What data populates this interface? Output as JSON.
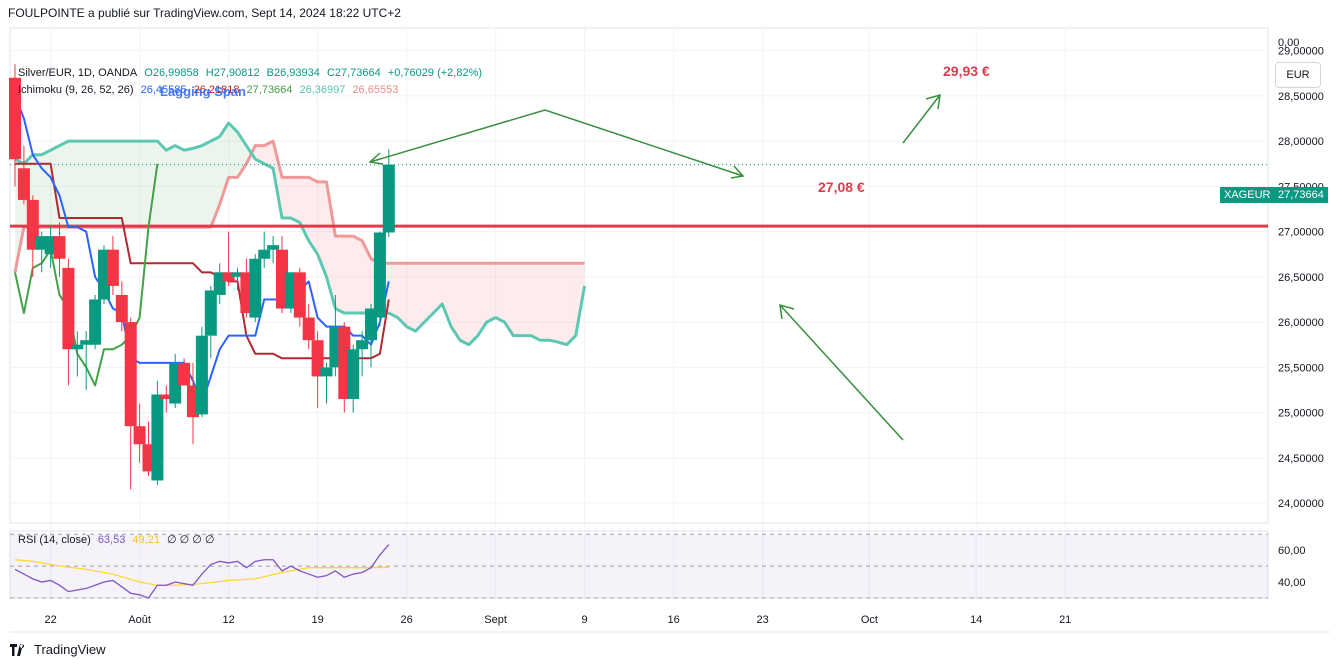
{
  "header": {
    "text": "FOULPOINTE a publié sur TradingView.com, Sept 14, 2024 18:22 UTC+2"
  },
  "legend": {
    "symbol": "Silver/EUR, 1D, OANDA",
    "o": "O26,99858",
    "h": "H27,90812",
    "b": "B26,93934",
    "c": "C27,73664",
    "chg": "+0,76029 (+2,82%)",
    "ichimoku": "Ichimoku (9, 26, 52, 26)",
    "ich_v1": "26,45585",
    "ich_v2": "26,21818",
    "ich_v3": "27,73664",
    "ich_v4": "26,36997",
    "ich_v5": "26,65553",
    "overlay_text": "Lagging Span",
    "rsi": "RSI (14, close)",
    "rsi_v": "63,53",
    "rsi_ma": "49,21",
    "rsi_extra": "∅ ∅ ∅ ∅"
  },
  "currency": "EUR",
  "annotations": {
    "target": "29,93 €",
    "level": "27,08 €"
  },
  "price_tag": {
    "symbol": "XAGEUR",
    "value": "27,73664"
  },
  "footer": {
    "brand": "TradingView"
  },
  "colors": {
    "up": "#089981",
    "down": "#f23645",
    "tenkan": "#2962ff",
    "kijun": "#b22833",
    "lagging": "#43a047",
    "spanA": "#5cc8b4",
    "spanB": "#ef9a9a",
    "hline": "#e03b4a",
    "arrow": "#388e3c",
    "rsi": "#7e57c2",
    "rsi_ma": "#fdd835"
  },
  "chart_data": {
    "type": "candlestick",
    "y_ticks": [
      "0,00",
      "29,00000",
      "28,50000",
      "28,00000",
      "27,50000",
      "27,00000",
      "26,50000",
      "26,00000",
      "25,50000",
      "25,00000",
      "24,50000",
      "24,00000"
    ],
    "y_tick_values": [
      null,
      29.0,
      28.5,
      28.0,
      27.5,
      27.0,
      26.5,
      26.0,
      25.5,
      25.0,
      24.5,
      24.0
    ],
    "ylim": [
      23.78,
      29.25
    ],
    "x_ticks": [
      "22",
      "Août",
      "12",
      "19",
      "26",
      "Sept",
      "9",
      "16",
      "23",
      "Oct",
      "14",
      "21"
    ],
    "x_tick_days": [
      4,
      14,
      24,
      34,
      44,
      54,
      64,
      74,
      84,
      96,
      108,
      118
    ],
    "horizontal_level": 27.06,
    "candles": [
      {
        "d": 0,
        "o": 28.7,
        "h": 28.85,
        "l": 27.5,
        "c": 27.8
      },
      {
        "d": 1,
        "o": 27.7,
        "h": 27.95,
        "l": 27.3,
        "c": 27.35
      },
      {
        "d": 2,
        "o": 27.35,
        "h": 27.4,
        "l": 26.5,
        "c": 26.8
      },
      {
        "d": 3,
        "o": 26.8,
        "h": 27.0,
        "l": 26.55,
        "c": 26.95
      },
      {
        "d": 4,
        "o": 26.75,
        "h": 27.05,
        "l": 26.6,
        "c": 26.95
      },
      {
        "d": 5,
        "o": 26.95,
        "h": 27.1,
        "l": 26.5,
        "c": 26.7
      },
      {
        "d": 6,
        "o": 26.6,
        "h": 26.7,
        "l": 25.3,
        "c": 25.7
      },
      {
        "d": 7,
        "o": 25.7,
        "h": 25.9,
        "l": 25.4,
        "c": 25.75
      },
      {
        "d": 8,
        "o": 25.75,
        "h": 25.9,
        "l": 25.25,
        "c": 25.8
      },
      {
        "d": 9,
        "o": 25.75,
        "h": 26.3,
        "l": 25.7,
        "c": 26.25
      },
      {
        "d": 10,
        "o": 26.25,
        "h": 26.85,
        "l": 26.2,
        "c": 26.8
      },
      {
        "d": 11,
        "o": 26.8,
        "h": 26.95,
        "l": 26.3,
        "c": 26.4
      },
      {
        "d": 12,
        "o": 26.3,
        "h": 26.45,
        "l": 25.9,
        "c": 26.0
      },
      {
        "d": 13,
        "o": 26.0,
        "h": 26.05,
        "l": 24.15,
        "c": 24.85
      },
      {
        "d": 14,
        "o": 24.85,
        "h": 25.1,
        "l": 24.45,
        "c": 24.65
      },
      {
        "d": 15,
        "o": 24.65,
        "h": 24.9,
        "l": 24.3,
        "c": 24.35
      },
      {
        "d": 16,
        "o": 24.25,
        "h": 25.35,
        "l": 24.2,
        "c": 25.2
      },
      {
        "d": 17,
        "o": 25.2,
        "h": 25.3,
        "l": 25.0,
        "c": 25.15
      },
      {
        "d": 18,
        "o": 25.1,
        "h": 25.65,
        "l": 25.05,
        "c": 25.55
      },
      {
        "d": 19,
        "o": 25.55,
        "h": 25.6,
        "l": 25.3,
        "c": 25.3
      },
      {
        "d": 20,
        "o": 25.3,
        "h": 25.55,
        "l": 24.65,
        "c": 24.95
      },
      {
        "d": 21,
        "o": 24.98,
        "h": 25.95,
        "l": 24.95,
        "c": 25.85
      },
      {
        "d": 22,
        "o": 25.85,
        "h": 26.4,
        "l": 25.6,
        "c": 26.35
      },
      {
        "d": 23,
        "o": 26.3,
        "h": 26.65,
        "l": 26.2,
        "c": 26.55
      },
      {
        "d": 24,
        "o": 26.55,
        "h": 27.0,
        "l": 26.4,
        "c": 26.45
      },
      {
        "d": 25,
        "o": 26.5,
        "h": 26.6,
        "l": 26.35,
        "c": 26.55
      },
      {
        "d": 26,
        "o": 26.55,
        "h": 26.7,
        "l": 26.05,
        "c": 26.1
      },
      {
        "d": 27,
        "o": 26.05,
        "h": 26.75,
        "l": 26.0,
        "c": 26.7
      },
      {
        "d": 28,
        "o": 26.7,
        "h": 27.0,
        "l": 26.6,
        "c": 26.8
      },
      {
        "d": 29,
        "o": 26.8,
        "h": 26.95,
        "l": 26.65,
        "c": 26.85
      },
      {
        "d": 30,
        "o": 26.8,
        "h": 26.95,
        "l": 26.1,
        "c": 26.15
      },
      {
        "d": 31,
        "o": 26.15,
        "h": 26.55,
        "l": 26.1,
        "c": 26.55
      },
      {
        "d": 32,
        "o": 26.55,
        "h": 26.6,
        "l": 25.95,
        "c": 26.05
      },
      {
        "d": 33,
        "o": 26.05,
        "h": 26.2,
        "l": 25.7,
        "c": 25.8
      },
      {
        "d": 34,
        "o": 25.8,
        "h": 25.9,
        "l": 25.05,
        "c": 25.4
      },
      {
        "d": 35,
        "o": 25.4,
        "h": 25.55,
        "l": 25.1,
        "c": 25.5
      },
      {
        "d": 36,
        "o": 25.5,
        "h": 26.3,
        "l": 25.4,
        "c": 25.95
      },
      {
        "d": 37,
        "o": 25.95,
        "h": 26.0,
        "l": 25.0,
        "c": 25.15
      },
      {
        "d": 38,
        "o": 25.15,
        "h": 25.75,
        "l": 25.0,
        "c": 25.7
      },
      {
        "d": 39,
        "o": 25.7,
        "h": 25.9,
        "l": 25.4,
        "c": 25.8
      },
      {
        "d": 40,
        "o": 25.8,
        "h": 26.2,
        "l": 25.5,
        "c": 26.15
      },
      {
        "d": 41,
        "o": 26.05,
        "h": 27.0,
        "l": 25.95,
        "c": 26.99
      },
      {
        "d": 42,
        "o": 26.99,
        "h": 27.91,
        "l": 26.94,
        "c": 27.74
      }
    ],
    "tenkan": [
      [
        0,
        28.5
      ],
      [
        1,
        28.25
      ],
      [
        2,
        27.85
      ],
      [
        3,
        27.7
      ],
      [
        4,
        27.6
      ],
      [
        5,
        27.4
      ],
      [
        6,
        27.05
      ],
      [
        7,
        27.05
      ],
      [
        8,
        27.0
      ],
      [
        9,
        26.5
      ],
      [
        10,
        26.35
      ],
      [
        11,
        26.15
      ],
      [
        12,
        26.1
      ],
      [
        13,
        25.6
      ],
      [
        14,
        25.55
      ],
      [
        15,
        25.55
      ],
      [
        16,
        25.55
      ],
      [
        17,
        25.55
      ],
      [
        18,
        25.55
      ],
      [
        19,
        25.55
      ],
      [
        20,
        25.35
      ],
      [
        21,
        25.1
      ],
      [
        22,
        25.4
      ],
      [
        23,
        25.7
      ],
      [
        24,
        25.85
      ],
      [
        25,
        25.85
      ],
      [
        26,
        25.85
      ],
      [
        27,
        25.85
      ],
      [
        28,
        26.25
      ],
      [
        29,
        26.25
      ],
      [
        30,
        26.25
      ],
      [
        31,
        26.25
      ],
      [
        32,
        26.35
      ],
      [
        33,
        26.45
      ],
      [
        34,
        26.05
      ],
      [
        35,
        25.95
      ],
      [
        36,
        25.95
      ],
      [
        37,
        25.95
      ],
      [
        38,
        25.85
      ],
      [
        39,
        25.85
      ],
      [
        40,
        25.75
      ],
      [
        41,
        26.0
      ],
      [
        42,
        26.45
      ]
    ],
    "kijun": [
      [
        0,
        27.75
      ],
      [
        1,
        27.75
      ],
      [
        2,
        27.75
      ],
      [
        3,
        27.75
      ],
      [
        4,
        27.75
      ],
      [
        5,
        27.15
      ],
      [
        6,
        27.15
      ],
      [
        7,
        27.15
      ],
      [
        8,
        27.15
      ],
      [
        9,
        27.15
      ],
      [
        10,
        27.15
      ],
      [
        11,
        27.15
      ],
      [
        12,
        27.15
      ],
      [
        13,
        26.65
      ],
      [
        14,
        26.65
      ],
      [
        15,
        26.65
      ],
      [
        16,
        26.65
      ],
      [
        17,
        26.65
      ],
      [
        18,
        26.65
      ],
      [
        19,
        26.65
      ],
      [
        20,
        26.65
      ],
      [
        21,
        26.55
      ],
      [
        22,
        26.55
      ],
      [
        23,
        26.5
      ],
      [
        24,
        26.45
      ],
      [
        25,
        26.45
      ],
      [
        26,
        25.85
      ],
      [
        27,
        25.65
      ],
      [
        28,
        25.65
      ],
      [
        29,
        25.65
      ],
      [
        30,
        25.6
      ],
      [
        31,
        25.6
      ],
      [
        32,
        25.6
      ],
      [
        33,
        25.6
      ],
      [
        34,
        25.6
      ],
      [
        35,
        25.6
      ],
      [
        36,
        25.6
      ],
      [
        37,
        25.6
      ],
      [
        38,
        25.6
      ],
      [
        39,
        25.6
      ],
      [
        40,
        25.6
      ],
      [
        41,
        25.65
      ],
      [
        42,
        26.25
      ]
    ],
    "lagging": [
      [
        0,
        26.55
      ],
      [
        1,
        26.1
      ],
      [
        2,
        26.6
      ],
      [
        3,
        26.65
      ],
      [
        4,
        26.8
      ],
      [
        5,
        26.3
      ],
      [
        6,
        26.15
      ],
      [
        7,
        25.65
      ],
      [
        8,
        25.5
      ],
      [
        9,
        25.3
      ],
      [
        10,
        25.7
      ],
      [
        11,
        25.7
      ],
      [
        12,
        25.75
      ],
      [
        13,
        25.85
      ],
      [
        14,
        26.05
      ],
      [
        15,
        27.05
      ],
      [
        16,
        27.75
      ]
    ],
    "span_a": [
      [
        0,
        27.8
      ],
      [
        1,
        27.75
      ],
      [
        2,
        27.85
      ],
      [
        3,
        27.85
      ],
      [
        4,
        27.9
      ],
      [
        5,
        27.95
      ],
      [
        6,
        28.0
      ],
      [
        7,
        28.0
      ],
      [
        8,
        28.0
      ],
      [
        9,
        28.0
      ],
      [
        10,
        28.0
      ],
      [
        11,
        28.0
      ],
      [
        12,
        28.0
      ],
      [
        13,
        28.0
      ],
      [
        14,
        28.0
      ],
      [
        15,
        28.0
      ],
      [
        16,
        28.0
      ],
      [
        17,
        27.9
      ],
      [
        18,
        27.95
      ],
      [
        19,
        27.9
      ],
      [
        20,
        27.92
      ],
      [
        21,
        27.95
      ],
      [
        22,
        28.0
      ],
      [
        23,
        28.05
      ],
      [
        24,
        28.2
      ],
      [
        25,
        28.1
      ],
      [
        26,
        27.95
      ],
      [
        27,
        27.8
      ],
      [
        28,
        27.75
      ],
      [
        29,
        27.7
      ],
      [
        30,
        27.15
      ],
      [
        31,
        27.15
      ],
      [
        32,
        27.1
      ],
      [
        33,
        26.9
      ],
      [
        34,
        26.75
      ],
      [
        35,
        26.5
      ],
      [
        36,
        26.15
      ],
      [
        37,
        26.1
      ],
      [
        38,
        26.1
      ],
      [
        39,
        26.1
      ],
      [
        40,
        26.1
      ],
      [
        41,
        26.1
      ],
      [
        42,
        26.1
      ],
      [
        43,
        26.05
      ],
      [
        44,
        25.95
      ],
      [
        45,
        25.9
      ],
      [
        46,
        26.0
      ],
      [
        47,
        26.1
      ],
      [
        48,
        26.2
      ],
      [
        49,
        25.95
      ],
      [
        50,
        25.8
      ],
      [
        51,
        25.75
      ],
      [
        52,
        25.85
      ],
      [
        53,
        26.0
      ],
      [
        54,
        26.05
      ],
      [
        55,
        26.0
      ],
      [
        56,
        25.85
      ],
      [
        57,
        25.85
      ],
      [
        58,
        25.85
      ],
      [
        59,
        25.8
      ],
      [
        60,
        25.8
      ],
      [
        61,
        25.78
      ],
      [
        62,
        25.75
      ],
      [
        63,
        25.85
      ],
      [
        64,
        26.4
      ]
    ],
    "span_b": [
      [
        0,
        26.55
      ],
      [
        1,
        27.05
      ],
      [
        2,
        27.05
      ],
      [
        3,
        27.05
      ],
      [
        4,
        27.05
      ],
      [
        5,
        27.05
      ],
      [
        6,
        27.05
      ],
      [
        7,
        27.05
      ],
      [
        8,
        27.05
      ],
      [
        9,
        27.05
      ],
      [
        10,
        27.05
      ],
      [
        11,
        27.05
      ],
      [
        12,
        27.05
      ],
      [
        13,
        27.05
      ],
      [
        14,
        27.05
      ],
      [
        15,
        27.05
      ],
      [
        16,
        27.05
      ],
      [
        17,
        27.05
      ],
      [
        18,
        27.05
      ],
      [
        19,
        27.05
      ],
      [
        20,
        27.05
      ],
      [
        21,
        27.05
      ],
      [
        22,
        27.05
      ],
      [
        23,
        27.3
      ],
      [
        24,
        27.6
      ],
      [
        25,
        27.6
      ],
      [
        26,
        27.75
      ],
      [
        27,
        27.95
      ],
      [
        28,
        27.95
      ],
      [
        29,
        28.0
      ],
      [
        30,
        27.6
      ],
      [
        31,
        27.6
      ],
      [
        32,
        27.6
      ],
      [
        33,
        27.6
      ],
      [
        34,
        27.55
      ],
      [
        35,
        27.55
      ],
      [
        36,
        26.95
      ],
      [
        37,
        26.95
      ],
      [
        38,
        26.95
      ],
      [
        39,
        26.9
      ],
      [
        40,
        26.7
      ],
      [
        41,
        26.65
      ],
      [
        42,
        26.65
      ],
      [
        43,
        26.65
      ],
      [
        44,
        26.65
      ],
      [
        45,
        26.65
      ],
      [
        46,
        26.65
      ],
      [
        47,
        26.65
      ],
      [
        48,
        26.65
      ],
      [
        49,
        26.65
      ],
      [
        50,
        26.65
      ],
      [
        51,
        26.65
      ],
      [
        52,
        26.65
      ],
      [
        53,
        26.65
      ],
      [
        54,
        26.65
      ],
      [
        55,
        26.65
      ],
      [
        56,
        26.65
      ],
      [
        57,
        26.65
      ],
      [
        58,
        26.65
      ],
      [
        59,
        26.65
      ],
      [
        60,
        26.65
      ],
      [
        61,
        26.65
      ],
      [
        62,
        26.65
      ],
      [
        63,
        26.65
      ],
      [
        64,
        26.65
      ]
    ],
    "rsi": {
      "ticks": [
        "60,00",
        "40,00"
      ],
      "tick_values": [
        60,
        40
      ],
      "ylim": [
        30,
        72
      ],
      "values": [
        [
          0,
          48
        ],
        [
          1,
          45
        ],
        [
          2,
          42
        ],
        [
          3,
          40
        ],
        [
          4,
          41
        ],
        [
          5,
          38
        ],
        [
          6,
          34
        ],
        [
          7,
          35
        ],
        [
          8,
          36
        ],
        [
          9,
          38
        ],
        [
          10,
          40
        ],
        [
          11,
          41
        ],
        [
          12,
          37
        ],
        [
          13,
          33
        ],
        [
          14,
          32
        ],
        [
          15,
          30
        ],
        [
          16,
          38
        ],
        [
          17,
          38
        ],
        [
          18,
          40
        ],
        [
          19,
          39
        ],
        [
          20,
          38
        ],
        [
          21,
          45
        ],
        [
          22,
          51
        ],
        [
          23,
          53
        ],
        [
          24,
          52
        ],
        [
          25,
          53
        ],
        [
          26,
          49
        ],
        [
          27,
          53
        ],
        [
          28,
          54
        ],
        [
          29,
          54
        ],
        [
          30,
          47
        ],
        [
          31,
          50
        ],
        [
          32,
          47
        ],
        [
          33,
          45
        ],
        [
          34,
          43
        ],
        [
          35,
          44
        ],
        [
          36,
          47
        ],
        [
          37,
          43
        ],
        [
          38,
          45
        ],
        [
          39,
          46
        ],
        [
          40,
          49
        ],
        [
          41,
          57
        ],
        [
          42,
          63.5
        ]
      ],
      "ma": [
        [
          0,
          54
        ],
        [
          2,
          53
        ],
        [
          5,
          50
        ],
        [
          8,
          48
        ],
        [
          11,
          45
        ],
        [
          14,
          40
        ],
        [
          16,
          38
        ],
        [
          18,
          38
        ],
        [
          21,
          39
        ],
        [
          24,
          41
        ],
        [
          27,
          42
        ],
        [
          30,
          46
        ],
        [
          33,
          49
        ],
        [
          36,
          49
        ],
        [
          39,
          49
        ],
        [
          42,
          49.2
        ]
      ]
    }
  }
}
